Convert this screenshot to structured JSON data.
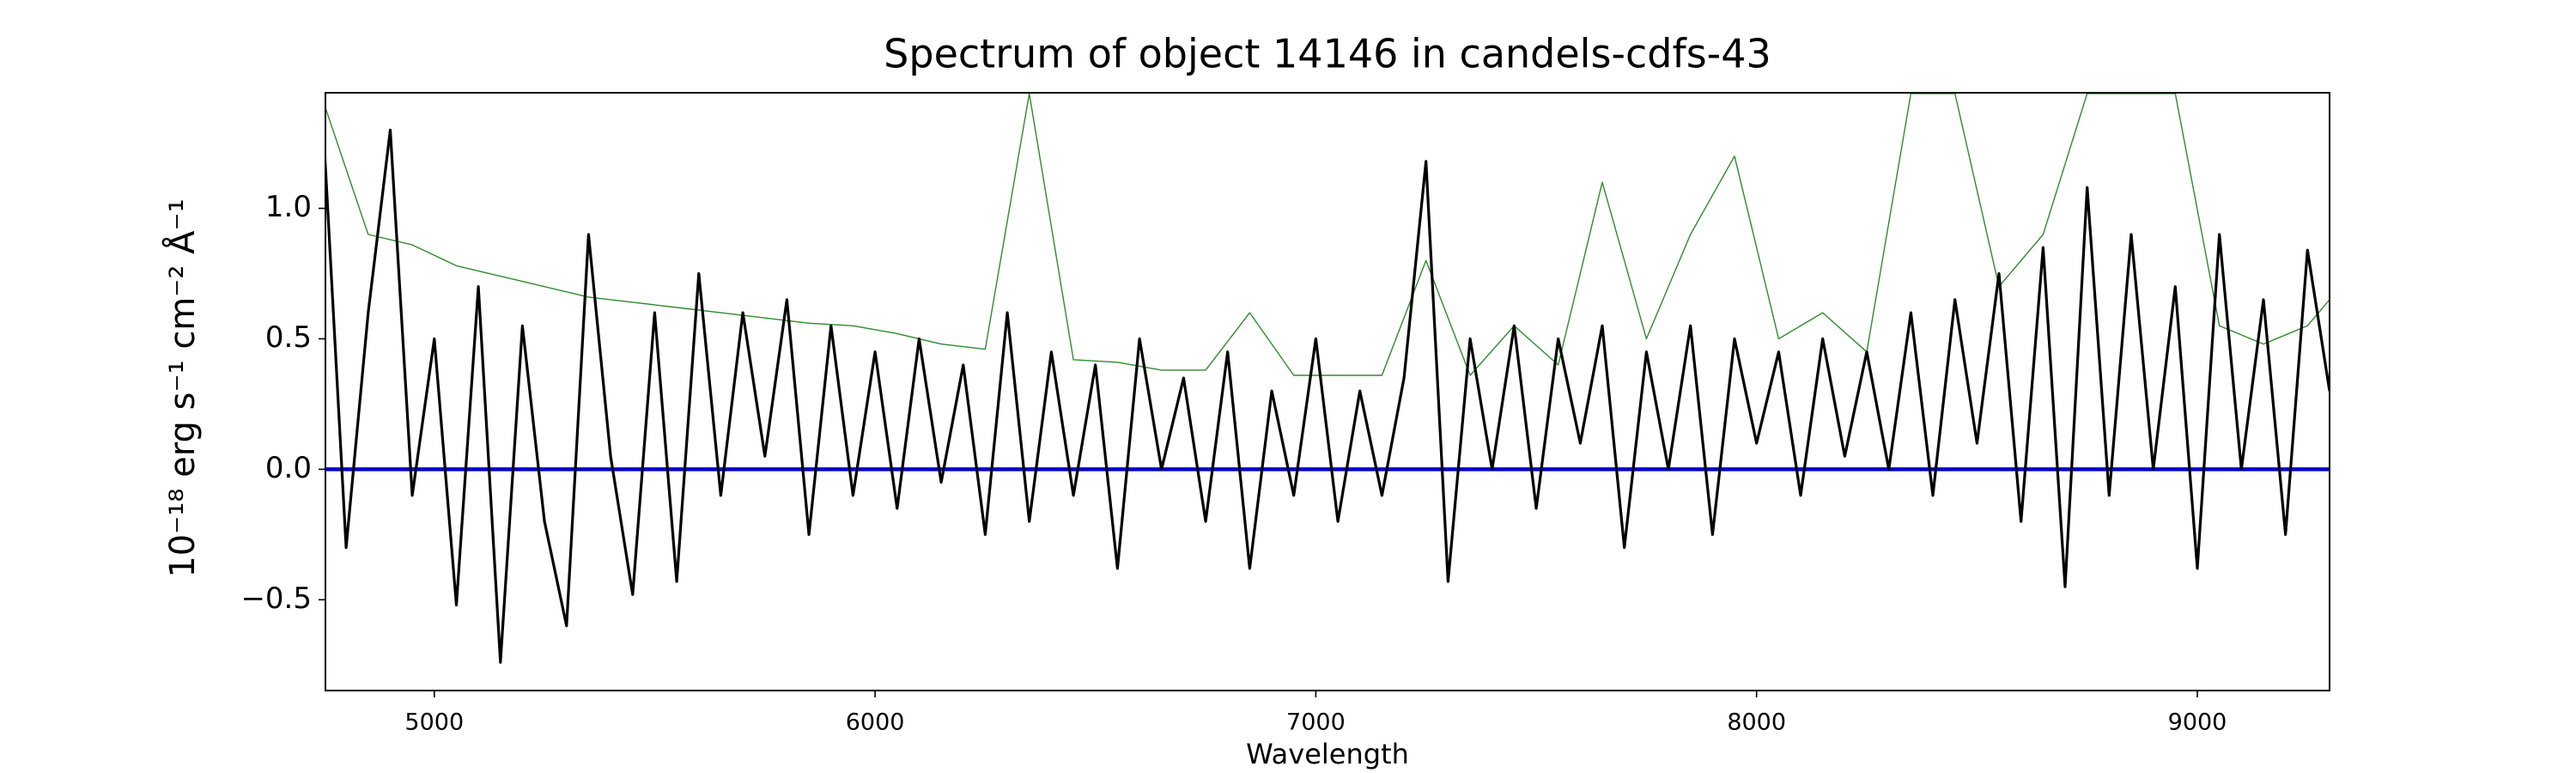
{
  "chart_data": {
    "type": "line",
    "title": "Spectrum of object 14146 in candels-cdfs-43",
    "x_label": "Wavelength",
    "y_label": "10⁻¹⁸ erg s⁻¹ cm⁻² Å⁻¹",
    "xlim": [
      4753,
      9300
    ],
    "ylim": [
      -0.848,
      1.443
    ],
    "xticks": [
      5000,
      6000,
      7000,
      8000,
      9000
    ],
    "yticks": [
      {
        "value": -0.5,
        "label": "−0.5"
      },
      {
        "value": 0,
        "label": "0.0"
      },
      {
        "value": 0.5,
        "label": "0.5"
      },
      {
        "value": 1,
        "label": "1.0"
      }
    ],
    "series": [
      {
        "color": "#2e8b2e",
        "x": [
          4750,
          4850,
          4950,
          5050,
          5150,
          5250,
          5350,
          5450,
          5550,
          5650,
          5750,
          5850,
          5950,
          6050,
          6150,
          6250,
          6350,
          6450,
          6550,
          6650,
          6750,
          6850,
          6950,
          7050,
          7150,
          7250,
          7350,
          7450,
          7550,
          7650,
          7750,
          7850,
          7950,
          8050,
          8150,
          8250,
          8350,
          8450,
          8550,
          8650,
          8750,
          8850,
          8950,
          9050,
          9150,
          9250,
          9300
        ],
        "values": [
          1.4,
          0.9,
          0.86,
          0.78,
          0.74,
          0.7,
          0.66,
          0.64,
          0.62,
          0.6,
          0.58,
          0.56,
          0.55,
          0.52,
          0.48,
          0.46,
          1.44,
          0.42,
          0.41,
          0.38,
          0.38,
          0.6,
          0.36,
          0.36,
          0.36,
          0.8,
          0.36,
          0.55,
          0.4,
          1.1,
          0.5,
          0.9,
          1.2,
          0.5,
          0.6,
          0.45,
          1.44,
          1.44,
          0.7,
          0.9,
          1.44,
          1.44,
          1.44,
          0.55,
          0.48,
          0.55,
          0.65
        ]
      },
      {
        "color": "#0000cc",
        "x": [
          4753,
          9300
        ],
        "values": [
          0,
          0
        ]
      },
      {
        "color": "#000000",
        "x": [
          4750,
          4800,
          4850,
          4900,
          4950,
          5000,
          5050,
          5100,
          5150,
          5200,
          5250,
          5300,
          5350,
          5400,
          5450,
          5500,
          5550,
          5600,
          5650,
          5700,
          5750,
          5800,
          5850,
          5900,
          5950,
          6000,
          6050,
          6100,
          6150,
          6200,
          6250,
          6300,
          6350,
          6400,
          6450,
          6500,
          6550,
          6600,
          6650,
          6700,
          6750,
          6800,
          6850,
          6900,
          6950,
          7000,
          7050,
          7100,
          7150,
          7200,
          7250,
          7300,
          7350,
          7400,
          7450,
          7500,
          7550,
          7600,
          7650,
          7700,
          7750,
          7800,
          7850,
          7900,
          7950,
          8000,
          8050,
          8100,
          8150,
          8200,
          8250,
          8300,
          8350,
          8400,
          8450,
          8500,
          8550,
          8600,
          8650,
          8700,
          8750,
          8800,
          8850,
          8900,
          8950,
          9000,
          9050,
          9100,
          9150,
          9200,
          9250,
          9300
        ],
        "values": [
          1.25,
          -0.3,
          0.6,
          1.3,
          -0.1,
          0.5,
          -0.52,
          0.7,
          -0.74,
          0.55,
          -0.2,
          -0.6,
          0.9,
          0.05,
          -0.48,
          0.6,
          -0.43,
          0.75,
          -0.1,
          0.6,
          0.05,
          0.65,
          -0.25,
          0.55,
          -0.1,
          0.45,
          -0.15,
          0.5,
          -0.05,
          0.4,
          -0.25,
          0.6,
          -0.2,
          0.45,
          -0.1,
          0.4,
          -0.38,
          0.5,
          0.0,
          0.35,
          -0.2,
          0.45,
          -0.38,
          0.3,
          -0.1,
          0.5,
          -0.2,
          0.3,
          -0.1,
          0.35,
          1.18,
          -0.43,
          0.5,
          0.0,
          0.55,
          -0.15,
          0.5,
          0.1,
          0.55,
          -0.3,
          0.45,
          0.0,
          0.55,
          -0.25,
          0.5,
          0.1,
          0.45,
          -0.1,
          0.5,
          0.05,
          0.45,
          0.0,
          0.6,
          -0.1,
          0.65,
          0.1,
          0.75,
          -0.2,
          0.85,
          -0.45,
          1.08,
          -0.1,
          0.9,
          0.0,
          0.7,
          -0.38,
          0.9,
          0.0,
          0.65,
          -0.25,
          0.84,
          0.3
        ]
      }
    ]
  }
}
